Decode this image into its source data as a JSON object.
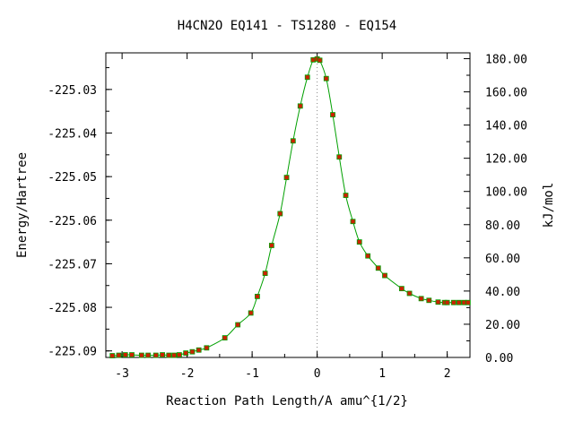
{
  "chart_data": {
    "type": "line",
    "title": "H4CN2O   EQ141 - TS1280 - EQ154",
    "xlabel": "Reaction Path Length/A amu^{1/2}",
    "ylabel_left": "Energy/Hartree",
    "ylabel_right": "kJ/mol",
    "xlim": [
      -3.25,
      2.35
    ],
    "ylim_left": [
      -225.0915,
      -225.0216
    ],
    "ylim_right": [
      0,
      183.5
    ],
    "x_ticks": [
      -3,
      -2,
      -1,
      0,
      1,
      2
    ],
    "x_tick_labels": [
      "-3",
      "-2",
      "-1",
      "0",
      "1",
      "2"
    ],
    "y_left_ticks": [
      -225.03,
      -225.04,
      -225.05,
      -225.06,
      -225.07,
      -225.08,
      -225.09
    ],
    "y_left_tick_labels": [
      "-225.03",
      "-225.04",
      "-225.05",
      "-225.06",
      "-225.07",
      "-225.08",
      "-225.09"
    ],
    "y_right_ticks": [
      180,
      160,
      140,
      120,
      100,
      80,
      60,
      40,
      20,
      0
    ],
    "y_right_tick_labels": [
      "180.00",
      "160.00",
      "140.00",
      "120.00",
      "100.00",
      "80.00",
      "60.00",
      "40.00",
      "20.00",
      "0.00"
    ],
    "ts_x": 0,
    "grid": false,
    "curve_color": "#00a000",
    "marker_color": "#cc2200",
    "x": [
      -3.15,
      -3.05,
      -2.95,
      -2.85,
      -2.7,
      -2.6,
      -2.48,
      -2.38,
      -2.28,
      -2.2,
      -2.12,
      -2.02,
      -1.92,
      -1.82,
      -1.7,
      -1.42,
      -1.22,
      -1.02,
      -0.92,
      -0.8,
      -0.7,
      -0.57,
      -0.47,
      -0.37,
      -0.26,
      -0.15,
      -0.06,
      0.0,
      0.04,
      0.14,
      0.24,
      0.34,
      0.44,
      0.55,
      0.65,
      0.78,
      0.94,
      1.04,
      1.3,
      1.42,
      1.6,
      1.72,
      1.86,
      1.96,
      2.0,
      2.1,
      2.18,
      2.26,
      2.32
    ],
    "y": [
      -225.0911,
      -225.091,
      -225.0909,
      -225.0909,
      -225.091,
      -225.091,
      -225.091,
      -225.0909,
      -225.091,
      -225.091,
      -225.0909,
      -225.0905,
      -225.0902,
      -225.0898,
      -225.0893,
      -225.087,
      -225.084,
      -225.0813,
      -225.0775,
      -225.0722,
      -225.0658,
      -225.0585,
      -225.0502,
      -225.0418,
      -225.0338,
      -225.0272,
      -225.0232,
      -225.023,
      -225.0233,
      -225.0275,
      -225.0358,
      -225.0455,
      -225.0543,
      -225.0603,
      -225.065,
      -225.0682,
      -225.071,
      -225.0727,
      -225.0757,
      -225.0768,
      -225.078,
      -225.0784,
      -225.0788,
      -225.0789,
      -225.0789,
      -225.0789,
      -225.0789,
      -225.0789,
      -225.0789
    ]
  }
}
